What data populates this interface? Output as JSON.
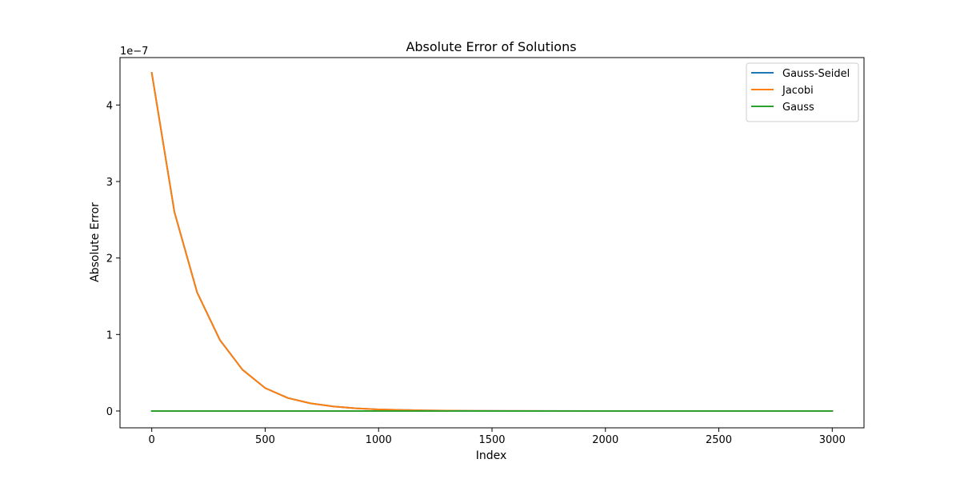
{
  "chart_data": {
    "type": "line",
    "title": "Absolute Error of Solutions",
    "xlabel": "Index",
    "ylabel": "Absolute Error",
    "y_offset_label": "1e−7",
    "xlim": [
      -140,
      3140
    ],
    "ylim": [
      -2.2e-08,
      4.62e-07
    ],
    "xticks": [
      0,
      500,
      1000,
      1500,
      2000,
      2500,
      3000
    ],
    "xtick_labels": [
      "0",
      "500",
      "1000",
      "1500",
      "2000",
      "2500",
      "3000"
    ],
    "yticks": [
      0,
      1e-07,
      2e-07,
      3e-07,
      4e-07
    ],
    "ytick_labels": [
      "0",
      "1",
      "2",
      "3",
      "4"
    ],
    "grid": false,
    "legend_position": "upper-right",
    "series": [
      {
        "name": "Gauss-Seidel",
        "color": "#1f77b4",
        "x": [
          0,
          100,
          200,
          300,
          400,
          500,
          600,
          700,
          800,
          900,
          1000,
          1200,
          1400,
          1600,
          2000,
          2500,
          3000
        ],
        "y": [
          4.42e-07,
          2.6e-07,
          1.55e-07,
          9.3e-08,
          5.4e-08,
          3e-08,
          1.7e-08,
          1e-08,
          6e-09,
          3.5e-09,
          2e-09,
          7e-10,
          2e-10,
          1e-10,
          0,
          0,
          0
        ]
      },
      {
        "name": "Jacobi",
        "color": "#ff7f0e",
        "x": [
          0,
          100,
          200,
          300,
          400,
          500,
          600,
          700,
          800,
          900,
          1000,
          1200,
          1400,
          1600,
          2000,
          2500,
          3000
        ],
        "y": [
          4.42e-07,
          2.6e-07,
          1.55e-07,
          9.3e-08,
          5.4e-08,
          3e-08,
          1.7e-08,
          1e-08,
          6e-09,
          3.5e-09,
          2e-09,
          7e-10,
          2e-10,
          1e-10,
          0,
          0,
          0
        ]
      },
      {
        "name": "Gauss",
        "color": "#2ca02c",
        "x": [
          0,
          3000
        ],
        "y": [
          0,
          0
        ]
      }
    ]
  }
}
